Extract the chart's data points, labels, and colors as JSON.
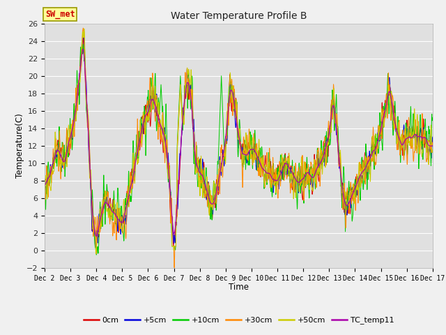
{
  "title": "Water Temperature Profile B",
  "xlabel": "Time",
  "ylabel": "Temperature(C)",
  "ylim": [
    -2,
    26
  ],
  "xlim": [
    0,
    360
  ],
  "annotation": "SW_met",
  "tick_labels": [
    "Dec 2",
    "Dec 3",
    "Dec 4",
    "Dec 5",
    "Dec 6",
    "Dec 7",
    "Dec 8",
    "Dec 9",
    "Dec 10",
    "Dec 11",
    "Dec 12",
    "Dec 13",
    "Dec 14",
    "Dec 15",
    "Dec 16",
    "Dec 17"
  ],
  "tick_positions": [
    0,
    24,
    48,
    72,
    96,
    120,
    144,
    168,
    192,
    216,
    240,
    264,
    288,
    312,
    336,
    360
  ],
  "colors": {
    "0cm": "#dd0000",
    "+5cm": "#0000dd",
    "+10cm": "#00cc00",
    "+30cm": "#ff8800",
    "+50cm": "#cccc00",
    "TC_temp11": "#aa00aa"
  },
  "fig_bg": "#f0f0f0",
  "plot_bg": "#e0e0e0",
  "grid_color": "#ffffff",
  "annot_fg": "#cc0000",
  "annot_bg": "#ffff99",
  "annot_edge": "#999900"
}
